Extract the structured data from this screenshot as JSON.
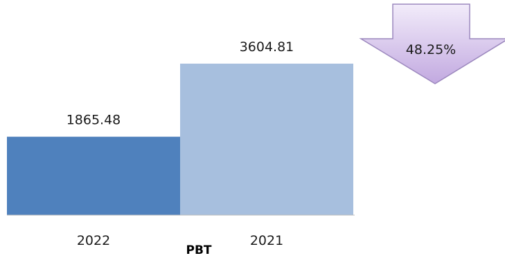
{
  "chart_data": {
    "type": "bar",
    "categories": [
      "2022",
      "2021"
    ],
    "values": [
      1865.48,
      3604.81
    ],
    "value_labels": [
      "1865.48",
      "3604.81"
    ],
    "xlabel": "PBT",
    "ylabel": "",
    "ylim": [
      0,
      4500
    ],
    "grid": false,
    "colors": [
      "#4f81bd",
      "#a7bfde"
    ],
    "annotation": {
      "text": "48.25%",
      "icon": "down-arrow-icon",
      "fill": "#c9b3e3",
      "stroke": "#9c88be"
    }
  }
}
